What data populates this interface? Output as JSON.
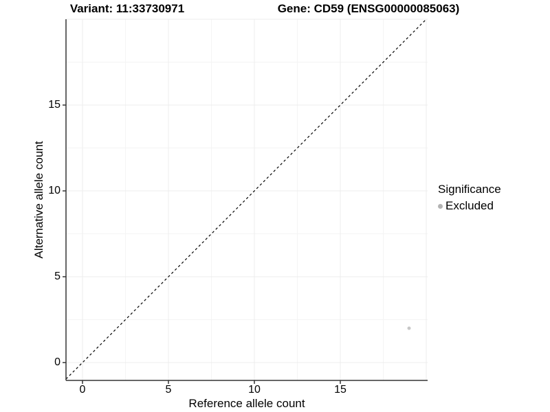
{
  "titles": {
    "variant": "Variant: 11:33730971",
    "gene": "Gene: CD59 (ENSG00000085063)"
  },
  "legend": {
    "title": "Significance",
    "items": [
      {
        "label": "Excluded",
        "color": "#b3b3b3"
      }
    ]
  },
  "colors": {
    "point": "#c7c7c7",
    "legend_point": "#b3b3b3",
    "grid_major": "#ececec",
    "grid_minor": "#f4f4f4",
    "axis_line": "#333333",
    "tick_mark": "#333333",
    "dashed_line": "#000000",
    "background": "#ffffff"
  },
  "chart_data": {
    "type": "scatter",
    "title_left": "Variant: 11:33730971",
    "title_right": "Gene: CD59 (ENSG00000085063)",
    "xlabel": "Reference allele count",
    "ylabel": "Alternative allele count",
    "xlim": [
      -1,
      20
    ],
    "ylim": [
      -1,
      20
    ],
    "x_ticks": [
      0,
      5,
      10,
      15
    ],
    "y_ticks": [
      0,
      5,
      10,
      15
    ],
    "grid": {
      "x_major": [
        0,
        5,
        10,
        15,
        20
      ],
      "x_minor": [
        2.5,
        7.5,
        12.5,
        17.5
      ],
      "y_major": [
        0,
        5,
        10,
        15,
        20
      ],
      "y_minor": [
        2.5,
        7.5,
        12.5,
        17.5
      ]
    },
    "series": [
      {
        "name": "Excluded",
        "color": "#c7c7c7",
        "points": [
          {
            "x": 19,
            "y": 2
          }
        ]
      }
    ],
    "reference_line": {
      "type": "identity",
      "style": "dashed",
      "slope": 1,
      "intercept": 0
    },
    "legend_position": "right",
    "legend_title": "Significance"
  }
}
